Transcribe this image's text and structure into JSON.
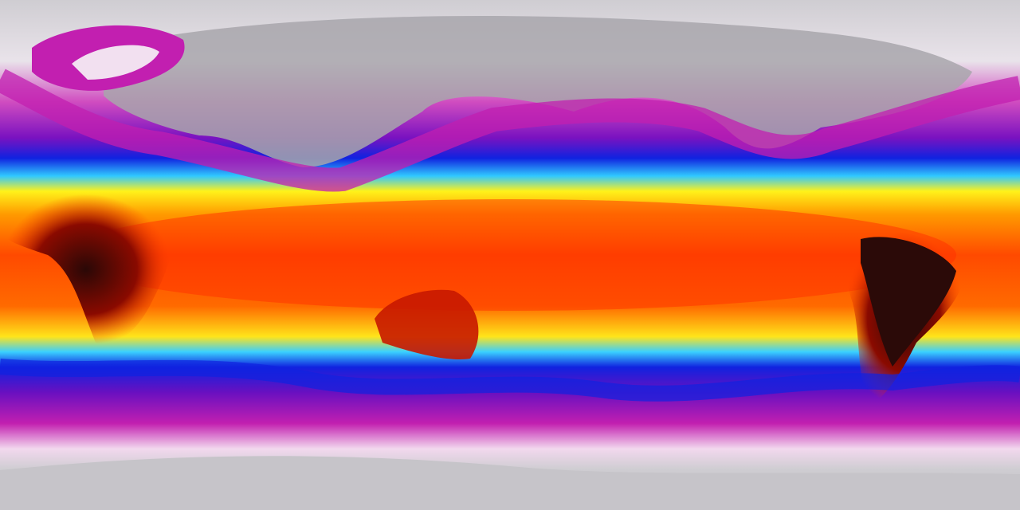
{
  "map": {
    "projection": "equirectangular",
    "colormap": [
      "#d9d6dc",
      "#f2e0f0",
      "#c21fb0",
      "#6a10c8",
      "#0a1ee0",
      "#27c7ff",
      "#fff21a",
      "#ff9a00",
      "#ff3a00",
      "#c40a00",
      "#3a0a0a"
    ],
    "colors": {
      "polar": "#cfcdd2",
      "land_cold": "#9a989c",
      "magenta": "#c21fb0",
      "blue": "#0a1ee0",
      "cyan": "#27c7ff",
      "yellow": "#fff21a",
      "orange": "#ff8a00",
      "red": "#ff3a00",
      "hot_land": "#5a0a05"
    }
  }
}
